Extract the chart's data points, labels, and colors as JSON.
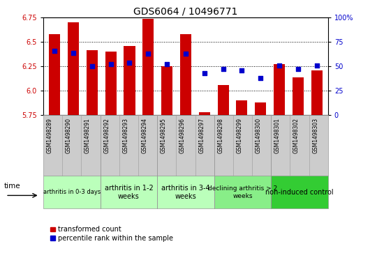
{
  "title": "GDS6064 / 10496771",
  "samples": [
    "GSM1498289",
    "GSM1498290",
    "GSM1498291",
    "GSM1498292",
    "GSM1498293",
    "GSM1498294",
    "GSM1498295",
    "GSM1498296",
    "GSM1498297",
    "GSM1498298",
    "GSM1498299",
    "GSM1498300",
    "GSM1498301",
    "GSM1498302",
    "GSM1498303"
  ],
  "bar_values": [
    6.58,
    6.7,
    6.42,
    6.4,
    6.46,
    6.74,
    6.25,
    6.58,
    5.78,
    6.06,
    5.9,
    5.88,
    6.27,
    6.14,
    6.21
  ],
  "dot_values": [
    66,
    64,
    50,
    52,
    54,
    63,
    52,
    63,
    43,
    47,
    46,
    38,
    51,
    47,
    51
  ],
  "ylim_left": [
    5.75,
    6.75
  ],
  "ylim_right": [
    0,
    100
  ],
  "yticks_left": [
    5.75,
    6.0,
    6.25,
    6.5,
    6.75
  ],
  "yticks_right": [
    0,
    25,
    50,
    75,
    100
  ],
  "bar_color": "#cc0000",
  "dot_color": "#0000cc",
  "bar_baseline": 5.75,
  "group_info": [
    {
      "label": "arthritis in 0-3 days",
      "start": 0,
      "end": 3,
      "facecolor": "#bbffbb",
      "fontsize": 6
    },
    {
      "label": "arthritis in 1-2\nweeks",
      "start": 3,
      "end": 6,
      "facecolor": "#bbffbb",
      "fontsize": 7
    },
    {
      "label": "arthritis in 3-4\nweeks",
      "start": 6,
      "end": 9,
      "facecolor": "#bbffbb",
      "fontsize": 7
    },
    {
      "label": "declining arthritis > 2\nweeks",
      "start": 9,
      "end": 12,
      "facecolor": "#88ee88",
      "fontsize": 6.5
    },
    {
      "label": "non-induced control",
      "start": 12,
      "end": 15,
      "facecolor": "#33cc33",
      "fontsize": 7
    }
  ],
  "legend_bar_label": "transformed count",
  "legend_dot_label": "percentile rank within the sample",
  "background_color": "#ffffff",
  "title_fontsize": 10,
  "tick_fontsize": 7,
  "sample_label_fontsize": 5.5,
  "legend_fontsize": 7,
  "sample_band_color": "#cccccc",
  "sample_band_edge": "#999999"
}
